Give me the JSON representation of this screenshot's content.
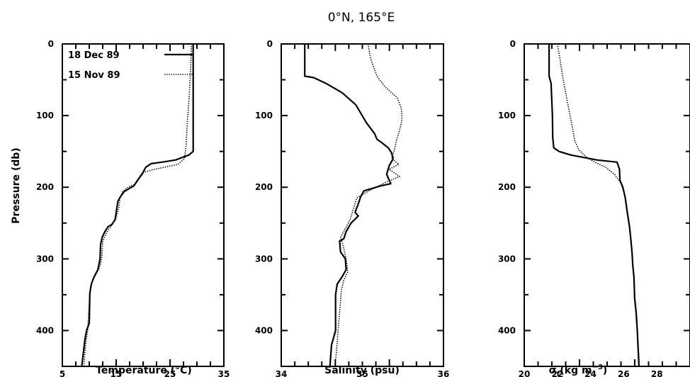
{
  "figure": {
    "title": "0°N, 165°E",
    "ylabel": "Pressure (db)"
  },
  "legend": [
    {
      "label": "18 Dec 89",
      "style": "solid"
    },
    {
      "label": "15 Nov 89",
      "style": "dotted"
    }
  ],
  "chart_data": [
    {
      "type": "line",
      "panel": "temperature",
      "xlabel": "Temperature (°C)",
      "ylabel": "Pressure (db)",
      "xlim": [
        5,
        35
      ],
      "ylim": [
        0,
        450
      ],
      "y_inverted": true,
      "x_tick_labels": [
        "5",
        "15",
        "25",
        "35"
      ],
      "y_tick_labels": [
        "0",
        "100",
        "200",
        "300",
        "400"
      ],
      "series": [
        {
          "name": "18 Dec 89",
          "style": "solid",
          "points": [
            [
              29.3,
              0
            ],
            [
              29.3,
              150
            ],
            [
              28.5,
              155
            ],
            [
              26,
              162
            ],
            [
              23.5,
              165
            ],
            [
              21.5,
              167
            ],
            [
              20.5,
              172
            ],
            [
              19.8,
              182
            ],
            [
              19,
              190
            ],
            [
              18.3,
              198
            ],
            [
              17.4,
              202
            ],
            [
              16.5,
              206
            ],
            [
              15.8,
              213
            ],
            [
              15.3,
              220
            ],
            [
              15.1,
              230
            ],
            [
              14.8,
              245
            ],
            [
              14.2,
              252
            ],
            [
              13.5,
              255
            ],
            [
              12.9,
              262
            ],
            [
              12.4,
              270
            ],
            [
              12.1,
              280
            ],
            [
              12,
              300
            ],
            [
              11.6,
              315
            ],
            [
              10.9,
              325
            ],
            [
              10.4,
              335
            ],
            [
              10.1,
              348
            ],
            [
              10,
              390
            ],
            [
              9.5,
              400
            ],
            [
              9.2,
              412
            ],
            [
              9,
              425
            ],
            [
              8.6,
              450
            ]
          ]
        },
        {
          "name": "15 Nov 89",
          "style": "dotted",
          "points": [
            [
              29,
              0
            ],
            [
              28.8,
              40
            ],
            [
              28.5,
              80
            ],
            [
              28.2,
              110
            ],
            [
              28,
              140
            ],
            [
              27.7,
              160
            ],
            [
              26.5,
              168
            ],
            [
              24,
              172
            ],
            [
              21.5,
              176
            ],
            [
              19.8,
              180
            ],
            [
              19.1,
              188
            ],
            [
              18.4,
              196
            ],
            [
              17.2,
              200
            ],
            [
              16.2,
              206
            ],
            [
              15.7,
              215
            ],
            [
              15.5,
              228
            ],
            [
              14.9,
              245
            ],
            [
              14,
              255
            ],
            [
              13.3,
              262
            ],
            [
              12.5,
              275
            ],
            [
              12.3,
              300
            ],
            [
              11.9,
              312
            ],
            [
              11.2,
              322
            ],
            [
              10.5,
              332
            ],
            [
              10.1,
              345
            ],
            [
              9.9,
              375
            ],
            [
              9.7,
              400
            ],
            [
              9.3,
              420
            ],
            [
              9,
              450
            ]
          ]
        }
      ]
    },
    {
      "type": "line",
      "panel": "salinity",
      "xlabel": "Salinity (psu)",
      "ylabel": "",
      "xlim": [
        34,
        36
      ],
      "ylim": [
        0,
        450
      ],
      "y_inverted": true,
      "x_tick_labels": [
        "34",
        "35",
        "36"
      ],
      "y_tick_labels": [
        "0",
        "100",
        "200",
        "300",
        "400"
      ],
      "series": [
        {
          "name": "18 Dec 89",
          "style": "solid",
          "points": [
            [
              34.29,
              0
            ],
            [
              34.29,
              45
            ],
            [
              34.4,
              47
            ],
            [
              34.55,
              55
            ],
            [
              34.75,
              68
            ],
            [
              34.92,
              85
            ],
            [
              35.05,
              110
            ],
            [
              35.15,
              125
            ],
            [
              35.18,
              133
            ],
            [
              35.23,
              137
            ],
            [
              35.32,
              145
            ],
            [
              35.36,
              152
            ],
            [
              35.38,
              160
            ],
            [
              35.33,
              170
            ],
            [
              35.3,
              182
            ],
            [
              35.35,
              195
            ],
            [
              35.23,
              198
            ],
            [
              35.02,
              205
            ],
            [
              34.98,
              213
            ],
            [
              34.95,
              223
            ],
            [
              34.91,
              235
            ],
            [
              34.95,
              240
            ],
            [
              34.86,
              250
            ],
            [
              34.8,
              262
            ],
            [
              34.77,
              272
            ],
            [
              34.72,
              275
            ],
            [
              34.73,
              290
            ],
            [
              34.79,
              300
            ],
            [
              34.8,
              315
            ],
            [
              34.75,
              325
            ],
            [
              34.69,
              335
            ],
            [
              34.67,
              350
            ],
            [
              34.67,
              400
            ],
            [
              34.62,
              420
            ],
            [
              34.6,
              450
            ]
          ]
        },
        {
          "name": "15 Nov 89",
          "style": "dotted",
          "points": [
            [
              35.07,
              0
            ],
            [
              35.1,
              20
            ],
            [
              35.18,
              45
            ],
            [
              35.28,
              60
            ],
            [
              35.43,
              75
            ],
            [
              35.48,
              90
            ],
            [
              35.49,
              105
            ],
            [
              35.46,
              120
            ],
            [
              35.42,
              135
            ],
            [
              35.39,
              150
            ],
            [
              35.36,
              160
            ],
            [
              35.45,
              168
            ],
            [
              35.33,
              175
            ],
            [
              35.46,
              185
            ],
            [
              35.31,
              192
            ],
            [
              35.22,
              197
            ],
            [
              35.08,
              205
            ],
            [
              34.93,
              215
            ],
            [
              34.89,
              230
            ],
            [
              34.85,
              245
            ],
            [
              34.78,
              260
            ],
            [
              34.73,
              270
            ],
            [
              34.76,
              280
            ],
            [
              34.8,
              300
            ],
            [
              34.82,
              318
            ],
            [
              34.77,
              330
            ],
            [
              34.74,
              345
            ],
            [
              34.72,
              375
            ],
            [
              34.7,
              400
            ],
            [
              34.68,
              430
            ],
            [
              34.66,
              450
            ]
          ]
        }
      ]
    },
    {
      "type": "line",
      "panel": "density",
      "xlabel": "σt(kg m⁻³)",
      "ylabel": "",
      "xlim": [
        20,
        30
      ],
      "ylim": [
        0,
        450
      ],
      "y_inverted": true,
      "x_tick_labels": [
        "20",
        "22",
        "24",
        "26",
        "28"
      ],
      "y_tick_labels": [
        "0",
        "100",
        "200",
        "300",
        "400"
      ],
      "series": [
        {
          "name": "18 Dec 89",
          "style": "solid",
          "points": [
            [
              21.5,
              0
            ],
            [
              21.5,
              45
            ],
            [
              21.62,
              55
            ],
            [
              21.7,
              100
            ],
            [
              21.72,
              130
            ],
            [
              21.78,
              145
            ],
            [
              22.1,
              150
            ],
            [
              22.8,
              155
            ],
            [
              23.5,
              158
            ],
            [
              24.4,
              162
            ],
            [
              25.6,
              165
            ],
            [
              25.75,
              175
            ],
            [
              25.77,
              190
            ],
            [
              25.95,
              200
            ],
            [
              26.1,
              215
            ],
            [
              26.22,
              235
            ],
            [
              26.35,
              255
            ],
            [
              26.42,
              270
            ],
            [
              26.5,
              290
            ],
            [
              26.55,
              310
            ],
            [
              26.62,
              325
            ],
            [
              26.64,
              340
            ],
            [
              26.66,
              355
            ],
            [
              26.75,
              375
            ],
            [
              26.82,
              400
            ],
            [
              26.88,
              430
            ],
            [
              26.92,
              450
            ]
          ]
        },
        {
          "name": "15 Nov 89",
          "style": "dotted",
          "points": [
            [
              22,
              0
            ],
            [
              22.15,
              20
            ],
            [
              22.35,
              50
            ],
            [
              22.6,
              80
            ],
            [
              22.85,
              110
            ],
            [
              23.05,
              135
            ],
            [
              23.3,
              148
            ],
            [
              23.75,
              158
            ],
            [
              24.25,
              165
            ],
            [
              24.9,
              172
            ],
            [
              25.45,
              182
            ],
            [
              25.85,
              195
            ],
            [
              26.05,
              210
            ],
            [
              26.2,
              235
            ],
            [
              26.38,
              260
            ],
            [
              26.48,
              285
            ],
            [
              26.56,
              310
            ],
            [
              26.62,
              330
            ],
            [
              26.68,
              355
            ],
            [
              26.78,
              380
            ],
            [
              26.84,
              410
            ],
            [
              26.9,
              430
            ],
            [
              26.95,
              450
            ]
          ]
        }
      ]
    }
  ]
}
